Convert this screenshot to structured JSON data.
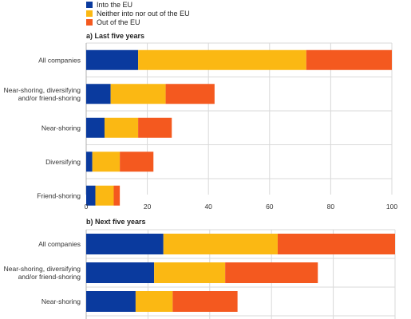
{
  "legend": [
    {
      "label": "Into the EU",
      "color": "#0a3a9e"
    },
    {
      "label": "Neither into nor out of the EU",
      "color": "#fbb813"
    },
    {
      "label": "Out of the EU",
      "color": "#f4591f"
    }
  ],
  "chart_data": [
    {
      "type": "bar",
      "orientation": "horizontal",
      "stacked": true,
      "title": "a) Last five years",
      "categories": [
        "All companies",
        "Near-shoring, diversifying and/or friend-shoring",
        "Near-shoring",
        "Diversifying",
        "Friend-shoring"
      ],
      "series": [
        {
          "name": "Into the EU",
          "values": [
            17,
            8,
            6,
            2,
            3
          ]
        },
        {
          "name": "Neither into nor out of the EU",
          "values": [
            55,
            18,
            11,
            9,
            6
          ]
        },
        {
          "name": "Out of the EU",
          "values": [
            28,
            16,
            11,
            11,
            2
          ]
        }
      ],
      "xlim": [
        0,
        100
      ],
      "xticks": [
        0,
        20,
        40,
        60,
        80,
        100
      ],
      "grid": true
    },
    {
      "type": "bar",
      "orientation": "horizontal",
      "stacked": true,
      "title": "b) Next five years",
      "categories": [
        "All companies",
        "Near-shoring, diversifying and/or friend-shoring",
        "Near-shoring"
      ],
      "series": [
        {
          "name": "Into the EU",
          "values": [
            25,
            22,
            16
          ]
        },
        {
          "name": "Neither into nor out of the EU",
          "values": [
            37,
            23,
            12
          ]
        },
        {
          "name": "Out of the EU",
          "values": [
            38,
            30,
            21
          ]
        }
      ],
      "xlim": [
        0,
        100
      ],
      "grid": true
    }
  ]
}
